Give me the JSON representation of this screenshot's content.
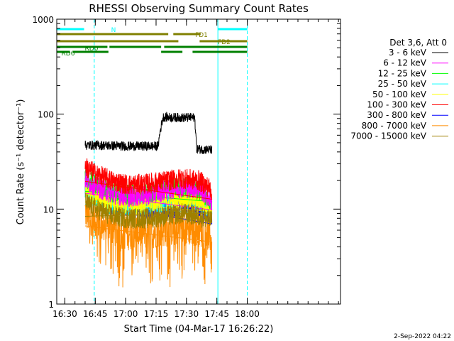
{
  "chart_data": {
    "type": "line",
    "title": "RHESSI Observing Summary Count Rates",
    "xlabel": "Start Time (04-Mar-17 16:26:22)",
    "ylabel": "Count Rate (s⁻¹ detector⁻¹)",
    "yscale": "log",
    "ylim": [
      1,
      1000
    ],
    "y_ticks": [
      1,
      10,
      100,
      1000
    ],
    "y_tick_labels": [
      "1",
      "10",
      "100",
      "1000"
    ],
    "xlim_min": [
      0,
      140
    ],
    "x_ticks_min": [
      4,
      19,
      34,
      49,
      64,
      79,
      94
    ],
    "x_tick_labels": [
      "16:30",
      "16:45",
      "17:00",
      "17:15",
      "17:30",
      "17:45",
      "18:00"
    ],
    "legend_title": "Det 3,6, Att 0",
    "legend_position": "right",
    "date_stamp": "2-Sep-2022 04:22",
    "series": [
      {
        "name": "3 - 6 keV",
        "color": "#000000",
        "time_min": [
          14,
          18,
          22,
          34,
          50,
          52.5,
          60,
          68,
          69,
          76.5
        ],
        "rate": [
          47,
          47,
          47,
          46,
          46,
          93,
          92,
          92,
          43,
          42
        ]
      },
      {
        "name": "6 - 12 keV",
        "color": "#ff00ff",
        "time_min": [
          14,
          16,
          20,
          27,
          35,
          45,
          55,
          62,
          70,
          76.5
        ],
        "rate": [
          21,
          19,
          17,
          14.5,
          13.5,
          14,
          16,
          17,
          16.5,
          12
        ]
      },
      {
        "name": "12 - 25 keV",
        "color": "#00ff00",
        "time_min": [
          14,
          16,
          20,
          27,
          35,
          45,
          55,
          62,
          70,
          76.5
        ],
        "rate": [
          22,
          20,
          18,
          15,
          14,
          14.5,
          16.5,
          17,
          16,
          12
        ]
      },
      {
        "name": "25 - 50 keV",
        "color": "#00ffff",
        "time_min": [
          14,
          16,
          20,
          27,
          35,
          45,
          55,
          62,
          70,
          76.5
        ],
        "rate": [
          16,
          14.5,
          13,
          11,
          10.5,
          11,
          12,
          12.5,
          12,
          10
        ]
      },
      {
        "name": "50 - 100 keV",
        "color": "#ffff00",
        "time_min": [
          14,
          16,
          20,
          27,
          35,
          45,
          55,
          62,
          70,
          76.5
        ],
        "rate": [
          17,
          15,
          13.5,
          11.5,
          11,
          11.5,
          12.5,
          13,
          12.5,
          10
        ]
      },
      {
        "name": "100 - 300 keV",
        "color": "#ff0000",
        "time_min": [
          14,
          16,
          20,
          27,
          35,
          45,
          55,
          62,
          70,
          76.5
        ],
        "rate": [
          28,
          26,
          23,
          20,
          18,
          18.5,
          20,
          21,
          20,
          16
        ]
      },
      {
        "name": "300 - 800 keV",
        "color": "#0000ff",
        "time_min": [
          14,
          16,
          20,
          27,
          35,
          45,
          55,
          62,
          70,
          76.5
        ],
        "rate": [
          17,
          15,
          13.5,
          11.5,
          10.5,
          10,
          10.5,
          11,
          10.5,
          9
        ]
      },
      {
        "name": "800 - 7000 keV",
        "color": "#ff8c00",
        "time_min": [
          14,
          16,
          20,
          27,
          35,
          45,
          55,
          62,
          70,
          76.5
        ],
        "rate": [
          9.5,
          8.5,
          7.5,
          6.3,
          5.8,
          5.9,
          6.3,
          6.5,
          6.3,
          5.5
        ]
      },
      {
        "name": "7000 - 15000 keV",
        "color": "#a08000",
        "time_min": [
          14,
          16,
          20,
          27,
          35,
          45,
          55,
          62,
          70,
          76.5
        ],
        "rate": [
          12,
          11,
          10,
          8.5,
          8,
          8,
          8.5,
          9,
          8.5,
          7.5
        ]
      }
    ],
    "flags": [
      {
        "name": "N",
        "color": "#00ffff",
        "label": "N",
        "segments_min": [
          [
            0,
            13.5
          ],
          [
            79.5,
            94
          ]
        ]
      },
      {
        "name": "FD1",
        "color": "#808000",
        "label": "FD1",
        "segments_min": [
          [
            0,
            55
          ],
          [
            57.5,
            71
          ]
        ]
      },
      {
        "name": "FD2",
        "color": "#808000",
        "label": "FD2",
        "segments_min": [
          [
            0,
            60
          ],
          [
            70.5,
            94
          ]
        ]
      },
      {
        "name": "RD0",
        "color": "#008000",
        "label": "RD0",
        "segments_min": [
          [
            0,
            25
          ],
          [
            26,
            51.5
          ],
          [
            53,
            94
          ]
        ]
      },
      {
        "name": "RD6",
        "color": "#008000",
        "label": "RD6",
        "segments_min": [
          [
            0,
            6.5
          ],
          [
            8,
            25.5
          ],
          [
            51.5,
            62
          ],
          [
            67,
            94
          ]
        ]
      }
    ],
    "markers": [
      {
        "style": "solid",
        "color": "#00ffff",
        "time_min": 0
      },
      {
        "style": "dashed",
        "color": "#00ffff",
        "time_min": 18.5
      },
      {
        "style": "solid",
        "color": "#00ffff",
        "time_min": 79.5
      },
      {
        "style": "dashed",
        "color": "#00ffff",
        "time_min": 94
      }
    ]
  }
}
